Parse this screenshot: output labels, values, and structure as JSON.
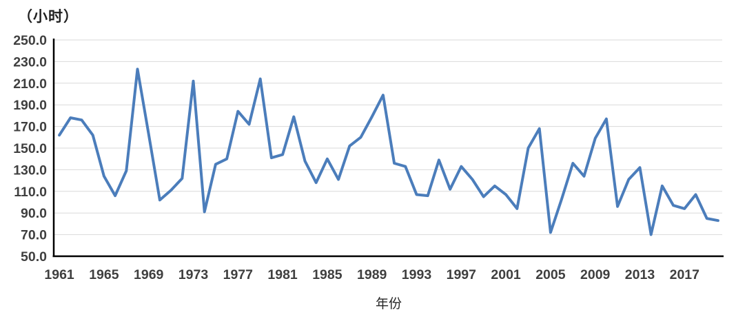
{
  "title_unit": "（小时）",
  "x_axis_title": "年份",
  "chart_data": {
    "type": "line",
    "title": "（小时）",
    "xlabel": "年份",
    "ylabel": "（小时）",
    "x": [
      1961,
      1962,
      1963,
      1964,
      1965,
      1966,
      1967,
      1968,
      1969,
      1970,
      1971,
      1972,
      1973,
      1974,
      1975,
      1976,
      1977,
      1978,
      1979,
      1980,
      1981,
      1982,
      1983,
      1984,
      1985,
      1986,
      1987,
      1988,
      1989,
      1990,
      1991,
      1992,
      1993,
      1994,
      1995,
      1996,
      1997,
      1998,
      1999,
      2000,
      2001,
      2002,
      2003,
      2004,
      2005,
      2006,
      2007,
      2008,
      2009,
      2010,
      2011,
      2012,
      2013,
      2014,
      2015,
      2016,
      2017,
      2018,
      2019,
      2020
    ],
    "values": [
      162,
      178,
      176,
      162,
      124,
      106,
      129,
      223,
      163,
      102,
      111,
      122,
      212,
      91,
      135,
      140,
      184,
      172,
      214,
      141,
      144,
      179,
      138,
      118,
      140,
      121,
      152,
      160,
      179,
      199,
      136,
      133,
      107,
      106,
      139,
      112,
      133,
      121,
      105,
      115,
      107,
      94,
      150,
      168,
      72,
      103,
      136,
      124,
      159,
      177,
      96,
      121,
      132,
      70,
      115,
      97,
      94,
      107,
      85,
      83
    ],
    "ylim": [
      50,
      250
    ],
    "ytick_step": 20,
    "ytick_decimals": 1,
    "xtick_labels": [
      "1961",
      "1965",
      "1969",
      "1973",
      "1977",
      "1981",
      "1985",
      "1989",
      "1993",
      "1997",
      "2001",
      "2005",
      "2009",
      "2013",
      "2017"
    ],
    "xtick_every": 4,
    "grid": "horizontal",
    "legend": "none",
    "colors": {
      "line": "#4B7DBB",
      "axis": "#000000",
      "gridline": "#D9D9D9",
      "tick_label": "#3F3F3F"
    }
  }
}
